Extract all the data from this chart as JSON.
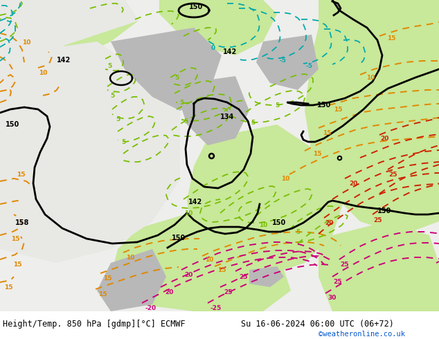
{
  "title_left": "Height/Temp. 850 hPa [gdmp][°C] ECMWF",
  "title_right": "Su 16-06-2024 06:00 UTC (06+72)",
  "credit": "©weatheronline.co.uk",
  "bg_color": "#ffffff",
  "fig_width": 6.34,
  "fig_height": 4.9,
  "dpi": 100,
  "map_bg": "#e8e8e8",
  "land_light_green": "#c8e89a",
  "land_mid_green": "#b0d880",
  "sea_gray": "#c8c8c8",
  "white_area": "#f0f0ee",
  "black": "#000000",
  "orange": "#e08800",
  "green": "#78be00",
  "cyan": "#00aaaa",
  "red": "#cc2200",
  "pink": "#cc0077",
  "font_title": 8.5,
  "font_credit": 7.5,
  "color_credit": "#0055cc"
}
